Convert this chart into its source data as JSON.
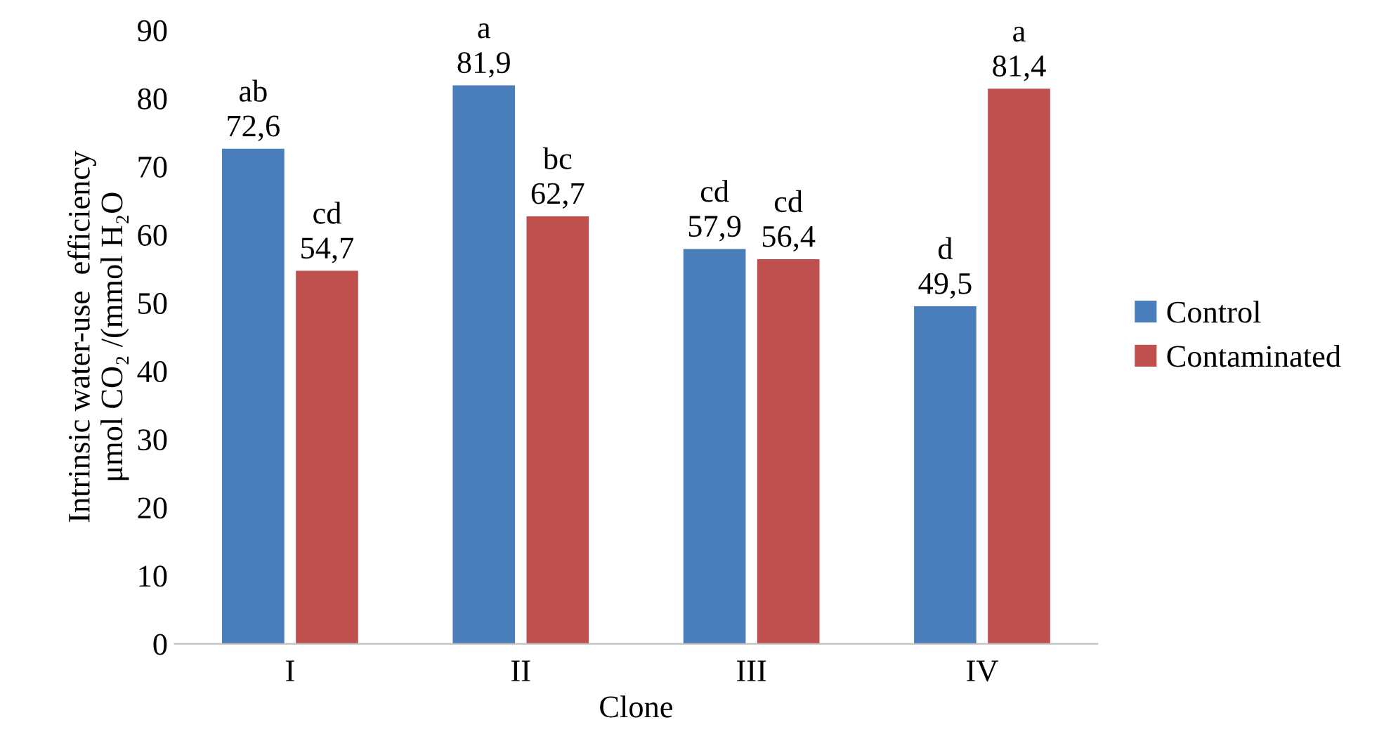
{
  "chart_data": {
    "type": "bar",
    "xlabel": "Clone",
    "ylabel": "Intrinsic water-use  efficiency\nμmol CO₂ /(mmol H₂O",
    "categories": [
      "I",
      "II",
      "III",
      "IV"
    ],
    "series": [
      {
        "name": "Control",
        "color": "#4a7ebb",
        "values": [
          72.6,
          81.9,
          57.9,
          49.5
        ],
        "value_labels": [
          "ab\n72,6",
          "a\n81,9",
          "cd\n57,9",
          "d\n49,5"
        ]
      },
      {
        "name": "Contaminated",
        "color": "#c0504d",
        "values": [
          54.7,
          62.7,
          56.4,
          81.4
        ],
        "value_labels": [
          "cd\n54,7",
          "bc\n62,7",
          "cd\n56,4",
          "a\n81,4"
        ]
      }
    ],
    "ylim": [
      0,
      90
    ],
    "yticks": [
      0,
      10,
      20,
      30,
      40,
      50,
      60,
      70,
      80,
      90
    ],
    "grid": false,
    "legend": "right"
  }
}
